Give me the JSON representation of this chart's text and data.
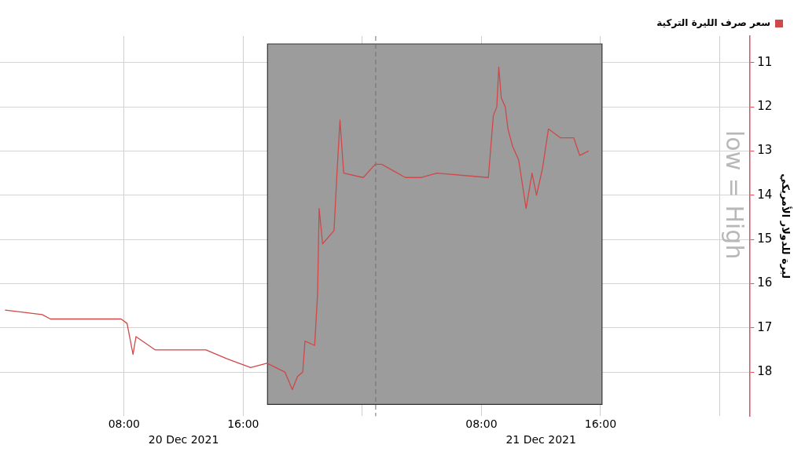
{
  "chart_data": {
    "type": "line",
    "ylabel": "ليرة للدولار الأمريكي",
    "annotations": [
      "low = High"
    ],
    "x": [
      "2021-12-20T00:00",
      "2021-12-20T02:30",
      "2021-12-20T03:03",
      "2021-12-20T07:48",
      "2021-12-20T08:12",
      "2021-12-20T08:36",
      "2021-12-20T08:48",
      "2021-12-20T10:06",
      "2021-12-20T11:54",
      "2021-12-20T13:30",
      "2021-12-20T14:54",
      "2021-12-20T16:30",
      "2021-12-20T17:36",
      "2021-12-20T18:48",
      "2021-12-20T19:18",
      "2021-12-20T19:39",
      "2021-12-20T20:00",
      "2021-12-20T20:09",
      "2021-12-20T20:48",
      "2021-12-20T21:00",
      "2021-12-20T21:06",
      "2021-12-20T21:20",
      "2021-12-20T22:06",
      "2021-12-20T22:18",
      "2021-12-20T22:30",
      "2021-12-20T22:45",
      "2021-12-21T00:04",
      "2021-12-21T00:52",
      "2021-12-21T01:18",
      "2021-12-21T02:54",
      "2021-12-21T03:58",
      "2021-12-21T05:00",
      "2021-12-21T08:28",
      "2021-12-21T08:38",
      "2021-12-21T08:48",
      "2021-12-21T09:02",
      "2021-12-21T09:10",
      "2021-12-21T09:20",
      "2021-12-21T09:36",
      "2021-12-21T09:47",
      "2021-12-21T10:06",
      "2021-12-21T10:30",
      "2021-12-21T11:00",
      "2021-12-21T11:24",
      "2021-12-21T11:42",
      "2021-12-21T12:06",
      "2021-12-21T12:30",
      "2021-12-21T13:18",
      "2021-12-21T14:12",
      "2021-12-21T14:36",
      "2021-12-21T15:12"
    ],
    "series": [
      {
        "name": "سعر صرف الليرة التركية",
        "color": "#d04848",
        "values": [
          16.6,
          16.7,
          16.8,
          16.8,
          16.9,
          17.6,
          17.2,
          17.5,
          17.5,
          17.5,
          17.7,
          17.9,
          17.8,
          18.0,
          18.4,
          18.1,
          18.0,
          17.3,
          17.4,
          16.2,
          14.3,
          15.1,
          14.8,
          13.5,
          12.3,
          13.5,
          13.6,
          13.3,
          13.3,
          13.6,
          13.6,
          13.5,
          13.6,
          12.9,
          12.2,
          12.0,
          11.1,
          11.8,
          12.0,
          12.5,
          12.9,
          13.2,
          14.3,
          13.5,
          14.0,
          13.4,
          12.5,
          12.7,
          12.7,
          13.1,
          13.0
        ]
      }
    ],
    "xlim": [
      "2021-12-19T23:40",
      "2021-12-22T02:00"
    ],
    "xticks": [
      {
        "value": "2021-12-20T08:00",
        "label": "08:00"
      },
      {
        "value": "2021-12-20T16:00",
        "label": "16:00"
      },
      {
        "value": "2021-12-21T00:00",
        "label": null
      },
      {
        "value": "2021-12-21T08:00",
        "label": "08:00"
      },
      {
        "value": "2021-12-21T16:00",
        "label": "16:00"
      },
      {
        "value": "2021-12-22T00:00",
        "label": null
      }
    ],
    "x2lim": [
      "2021-12-19T23:40",
      "2021-12-22T02:00"
    ],
    "x2ticks": [
      {
        "value": "2021-12-20T12:00",
        "label": "20 Dec 2021"
      },
      {
        "value": "2021-12-21T12:00",
        "label": "21 Dec 2021"
      }
    ],
    "ylim": [
      19.0,
      10.4
    ],
    "yticks": [
      11,
      12,
      13,
      14,
      15,
      16,
      17,
      18
    ],
    "bands": [
      {
        "axis": "x",
        "from": "2021-12-20T17:38",
        "to": "2021-12-21T16:06",
        "color": "#9c9c9c"
      }
    ],
    "ref_lines": [
      {
        "axis": "x",
        "value": "2021-12-21T00:54",
        "line_style": "dashed",
        "color": "#707070"
      }
    ],
    "grid": true,
    "legend": "top right",
    "marker": "none",
    "line_style": "solid"
  }
}
